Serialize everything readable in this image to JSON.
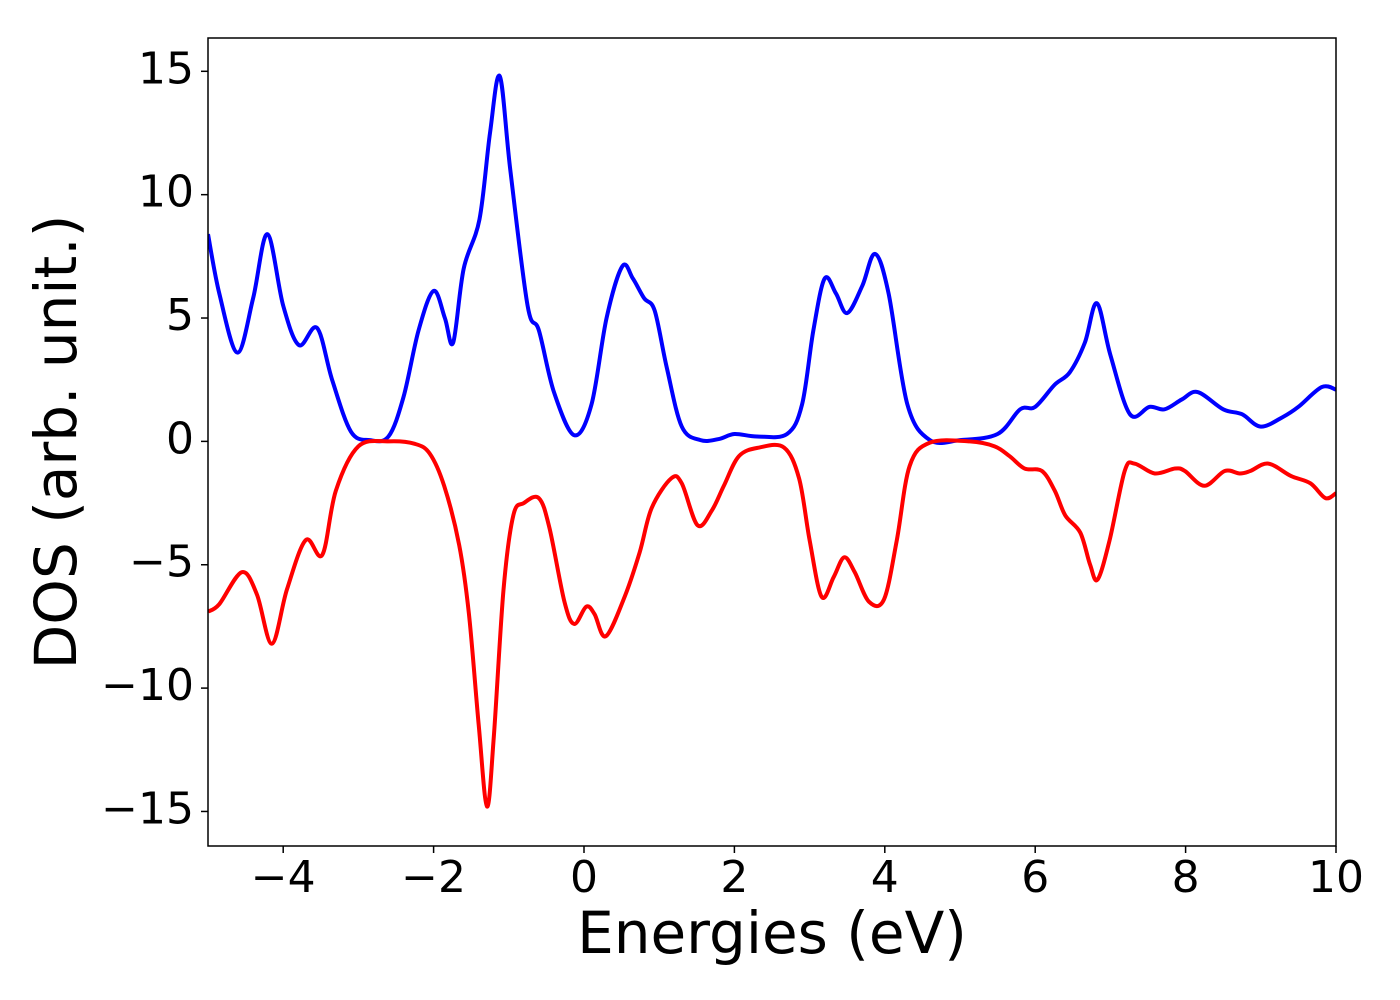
{
  "chart_data": {
    "type": "line",
    "xlabel": "Energies (eV)",
    "ylabel": "DOS (arb. unit.)",
    "xlim": [
      -5,
      10
    ],
    "ylim": [
      -16.4,
      16.35
    ],
    "xticks": [
      {
        "value": -4,
        "label": "−4"
      },
      {
        "value": -2,
        "label": "−2"
      },
      0,
      2,
      4,
      6,
      8,
      10
    ],
    "yticks": [
      {
        "value": -15,
        "label": "−15"
      },
      {
        "value": -10,
        "label": "−10"
      },
      {
        "value": -5,
        "label": "−5"
      },
      0,
      5,
      10,
      15
    ],
    "grid": false,
    "series": [
      {
        "color": "#0000ff",
        "x": [
          -5,
          -4.85,
          -4.61,
          -4.4,
          -4.21,
          -4.0,
          -3.79,
          -3.55,
          -3.35,
          -3.1,
          -2.85,
          -2.6,
          -2.4,
          -2.2,
          -2.0,
          -1.85,
          -1.74,
          -1.6,
          -1.39,
          -1.25,
          -1.12,
          -0.98,
          -0.75,
          -0.6,
          -0.4,
          -0.13,
          0.1,
          0.3,
          0.51,
          0.65,
          0.8,
          0.94,
          1.1,
          1.3,
          1.55,
          1.8,
          2.0,
          2.3,
          2.7,
          2.9,
          3.05,
          3.2,
          3.35,
          3.5,
          3.7,
          3.87,
          4.05,
          4.3,
          4.6,
          5.0,
          5.5,
          5.8,
          6.0,
          6.26,
          6.46,
          6.66,
          6.82,
          7.0,
          7.26,
          7.52,
          7.72,
          7.95,
          8.16,
          8.5,
          8.75,
          9.0,
          9.3,
          9.5,
          9.81,
          10
        ],
        "values": [
          8.4,
          6.0,
          3.6,
          5.8,
          8.4,
          5.5,
          3.9,
          4.6,
          2.5,
          0.4,
          0.05,
          0.2,
          1.8,
          4.5,
          6.1,
          5.0,
          4.0,
          7.0,
          9.0,
          12.5,
          14.8,
          11,
          5.5,
          4.5,
          2.0,
          0.25,
          1.5,
          5.0,
          7.1,
          6.6,
          5.8,
          5.3,
          3.0,
          0.6,
          0.05,
          0.1,
          0.3,
          0.2,
          0.3,
          1.5,
          4.5,
          6.6,
          6.0,
          5.2,
          6.3,
          7.6,
          6.0,
          1.5,
          0.05,
          0.05,
          0.3,
          1.3,
          1.4,
          2.3,
          2.8,
          4.0,
          5.6,
          3.5,
          1.1,
          1.4,
          1.3,
          1.7,
          2.0,
          1.3,
          1.1,
          0.6,
          1.0,
          1.4,
          2.2,
          2.1
        ]
      },
      {
        "color": "#ff0000",
        "x": [
          -5,
          -4.85,
          -4.55,
          -4.35,
          -4.15,
          -3.95,
          -3.7,
          -3.48,
          -3.3,
          -3.0,
          -2.6,
          -2.25,
          -2.05,
          -1.86,
          -1.66,
          -1.53,
          -1.4,
          -1.29,
          -1.2,
          -1.07,
          -0.94,
          -0.8,
          -0.6,
          -0.46,
          -0.26,
          -0.13,
          0.03,
          0.14,
          0.29,
          0.54,
          0.74,
          0.9,
          1.16,
          1.3,
          1.51,
          1.7,
          1.86,
          2.06,
          2.33,
          2.66,
          2.86,
          3.0,
          3.16,
          3.32,
          3.46,
          3.6,
          3.79,
          3.99,
          4.16,
          4.33,
          4.6,
          5.13,
          5.46,
          5.66,
          5.86,
          6.09,
          6.26,
          6.4,
          6.6,
          6.73,
          6.83,
          6.99,
          7.19,
          7.32,
          7.59,
          7.86,
          7.99,
          8.25,
          8.52,
          8.72,
          8.86,
          9.1,
          9.4,
          9.66,
          9.86,
          10
        ],
        "values": [
          -6.9,
          -6.6,
          -5.3,
          -6.2,
          -8.2,
          -6.0,
          -4.0,
          -4.6,
          -2.0,
          -0.2,
          0,
          -0.1,
          -0.5,
          -1.8,
          -4.2,
          -7,
          -11.5,
          -14.8,
          -12,
          -6,
          -3,
          -2.5,
          -2.3,
          -3.5,
          -6.5,
          -7.4,
          -6.7,
          -7.0,
          -7.9,
          -6.3,
          -4.5,
          -2.7,
          -1.5,
          -1.7,
          -3.4,
          -2.8,
          -1.8,
          -0.6,
          -0.25,
          -0.25,
          -1.5,
          -4.0,
          -6.3,
          -5.5,
          -4.7,
          -5.3,
          -6.5,
          -6.4,
          -4.0,
          -1.0,
          -0.05,
          0,
          -0.2,
          -0.6,
          -1.1,
          -1.2,
          -2.0,
          -3.0,
          -3.7,
          -5.0,
          -5.6,
          -4.0,
          -1.2,
          -0.9,
          -1.3,
          -1.1,
          -1.2,
          -1.8,
          -1.2,
          -1.3,
          -1.2,
          -0.9,
          -1.4,
          -1.7,
          -2.3,
          -2.1
        ]
      }
    ]
  }
}
